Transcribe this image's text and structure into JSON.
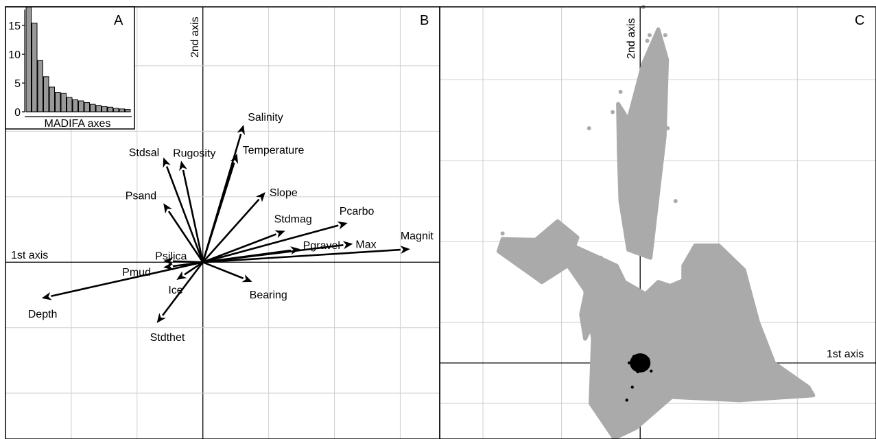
{
  "panels": {
    "a": "A",
    "b": "B",
    "c": "C"
  },
  "axes": {
    "first": "1st axis",
    "second": "2nd axis"
  },
  "chart_data": [
    {
      "panel": "A",
      "type": "bar",
      "xlabel": "MADIFA axes",
      "ylabel": "",
      "ylim": [
        0,
        18
      ],
      "yticks": [
        0,
        5,
        10,
        15
      ],
      "values": [
        18.2,
        15.4,
        8.9,
        6.1,
        4.3,
        3.4,
        3.2,
        2.5,
        2.1,
        1.9,
        1.6,
        1.3,
        1.1,
        0.9,
        0.8,
        0.6,
        0.5,
        0.4
      ]
    },
    {
      "panel": "B",
      "type": "scatter",
      "subtype": "biplot-arrows",
      "xlabel": "1st axis",
      "ylabel": "2nd axis",
      "xlim": [
        -3,
        3.6
      ],
      "ylim": [
        -2.7,
        3.9
      ],
      "grid": true,
      "vectors": [
        {
          "name": "Salinity",
          "x": 0.62,
          "y": 2.1
        },
        {
          "name": "Temperature",
          "x": 0.52,
          "y": 1.66
        },
        {
          "name": "Rugosity",
          "x": -0.33,
          "y": 1.55
        },
        {
          "name": "Stdsal",
          "x": -0.6,
          "y": 1.6
        },
        {
          "name": "Slope",
          "x": 0.95,
          "y": 1.07
        },
        {
          "name": "Psand",
          "x": -0.6,
          "y": 0.9
        },
        {
          "name": "Stdmag",
          "x": 1.25,
          "y": 0.48
        },
        {
          "name": "Pcarbo",
          "x": 2.2,
          "y": 0.6
        },
        {
          "name": "Pgravel",
          "x": 1.48,
          "y": 0.2
        },
        {
          "name": "Max",
          "x": 2.28,
          "y": 0.28
        },
        {
          "name": "Magnit",
          "x": 3.15,
          "y": 0.2
        },
        {
          "name": "Psilica",
          "x": -0.6,
          "y": 0.02
        },
        {
          "name": "Pmud",
          "x": -0.6,
          "y": -0.08
        },
        {
          "name": "Ice",
          "x": -0.4,
          "y": -0.27
        },
        {
          "name": "Bearing",
          "x": 0.75,
          "y": -0.3
        },
        {
          "name": "Depth",
          "x": -2.45,
          "y": -0.55
        },
        {
          "name": "Stdthet",
          "x": -0.7,
          "y": -0.93
        }
      ]
    },
    {
      "panel": "C",
      "type": "scatter",
      "xlabel": "1st axis",
      "ylabel": "2nd axis",
      "xlim": [
        -25.5,
        30
      ],
      "ylim": [
        -9.4,
        44
      ],
      "grid": true,
      "series": [
        {
          "name": "",
          "color": "#aaaaaa",
          "points": [
            [
              0.4,
              44
            ],
            [
              1.2,
              40.5
            ],
            [
              3.2,
              40.5
            ],
            [
              0.9,
              39.8
            ],
            [
              2.5,
              37
            ],
            [
              3.2,
              36
            ],
            [
              2.2,
              35.8
            ],
            [
              2.8,
              34.5
            ],
            [
              -2.5,
              33.5
            ],
            [
              2.2,
              32.5
            ],
            [
              3.2,
              32
            ],
            [
              -3.5,
              31
            ],
            [
              -6.5,
              29
            ],
            [
              1.3,
              29.5
            ],
            [
              3.5,
              29
            ],
            [
              -0.8,
              28
            ],
            [
              4.5,
              20
            ],
            [
              -17.5,
              16
            ],
            [
              -14.5,
              12.8
            ],
            [
              -10,
              13.5
            ]
          ]
        },
        {
          "name": "",
          "color": "#000000",
          "points": [
            [
              -1.4,
              0
            ],
            [
              -0.4,
              0.4
            ],
            [
              0.4,
              0.2
            ],
            [
              -1,
              -0.4
            ],
            [
              0.5,
              -0.6
            ],
            [
              1.4,
              -1
            ],
            [
              0.2,
              0.8
            ],
            [
              -0.3,
              -1.1
            ],
            [
              1,
              0.5
            ],
            [
              -0.8,
              0.8
            ],
            [
              -1,
              -3
            ],
            [
              -1.7,
              -4.6
            ]
          ]
        }
      ],
      "cloud_regions": [
        [
          [
            -12,
            16
          ],
          [
            -7,
            9
          ],
          [
            -6,
            3
          ],
          [
            -6.3,
            -5
          ],
          [
            -3.3,
            -9.3
          ],
          [
            -0.5,
            -8
          ],
          [
            4,
            -4.2
          ],
          [
            12.6,
            -4.6
          ],
          [
            22,
            -4
          ],
          [
            21.4,
            -3
          ],
          [
            17,
            0
          ],
          [
            15,
            5
          ],
          [
            13.2,
            11.5
          ],
          [
            10,
            14.5
          ],
          [
            7,
            14.5
          ],
          [
            5.5,
            12
          ],
          [
            5.5,
            10.2
          ],
          [
            3.8,
            9.5
          ],
          [
            2.3,
            10
          ],
          [
            0.7,
            8.5
          ],
          [
            -2,
            10
          ],
          [
            -3,
            12
          ]
        ],
        [
          [
            -2.8,
            32
          ],
          [
            -1.5,
            30
          ],
          [
            0.4,
            37
          ],
          [
            2.3,
            41.2
          ],
          [
            3.4,
            37.5
          ],
          [
            3.1,
            28
          ],
          [
            1.3,
            13
          ],
          [
            -1.5,
            14
          ],
          [
            -2.5,
            20
          ],
          [
            -2.7,
            26
          ]
        ],
        [
          [
            -18,
            13.8
          ],
          [
            -12.5,
            10
          ],
          [
            -9.3,
            12
          ],
          [
            -8,
            15.5
          ],
          [
            -10.5,
            17.5
          ],
          [
            -13.3,
            15.2
          ],
          [
            -17.5,
            15.3
          ]
        ],
        [
          [
            -5,
            13
          ],
          [
            -6.2,
            12
          ],
          [
            -7.5,
            6
          ],
          [
            -7,
            3
          ],
          [
            -5.5,
            6
          ]
        ]
      ]
    }
  ]
}
